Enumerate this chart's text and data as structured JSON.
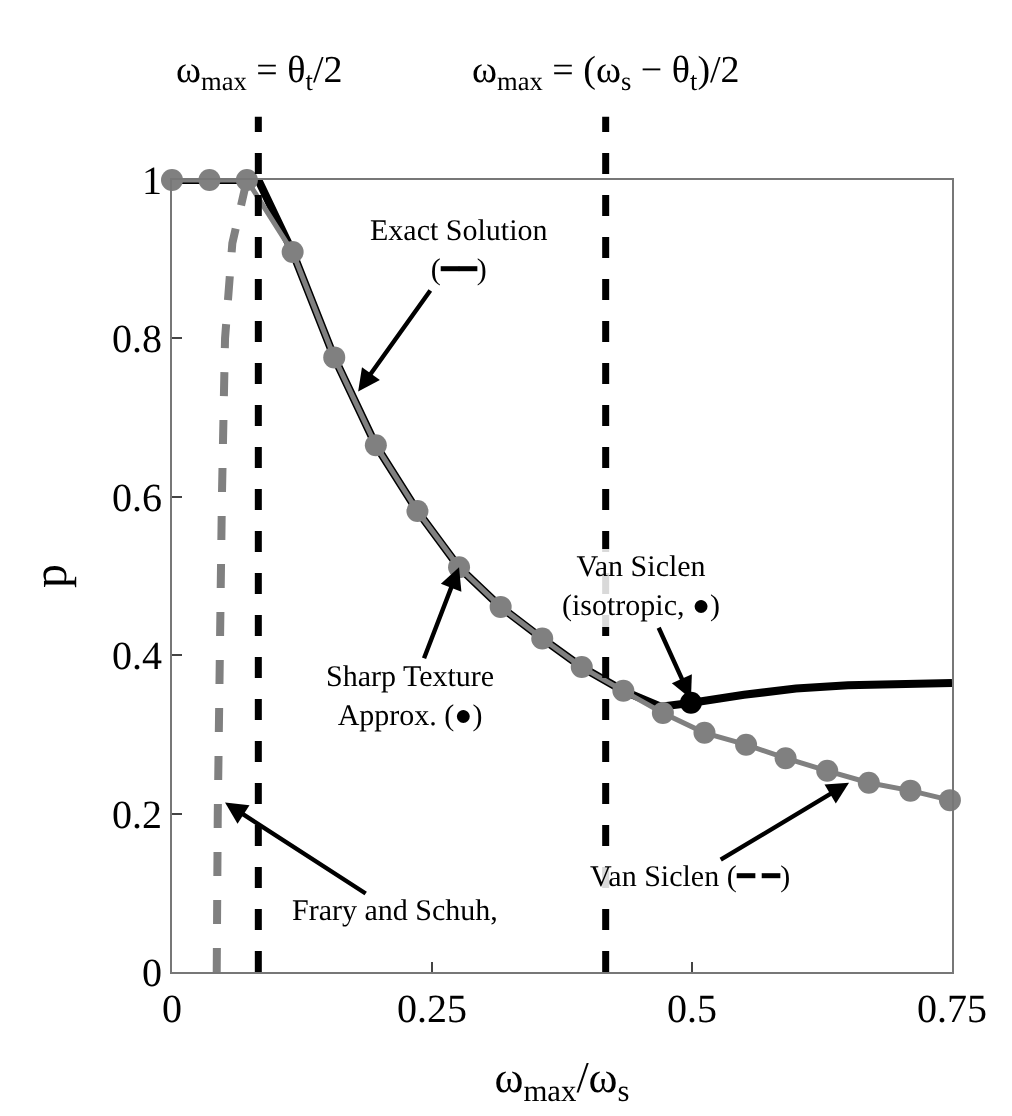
{
  "chart_data": {
    "type": "line",
    "xlabel": "ω$_{max}$/ω$_{s}$",
    "ylabel": "p",
    "xlim": [
      0,
      0.75
    ],
    "xticks": [
      0,
      0.25,
      0.5,
      0.75
    ],
    "ylim": [
      0,
      1
    ],
    "yticks": [
      0,
      0.2,
      0.4,
      0.6,
      0.8,
      1
    ],
    "series": [
      {
        "type": "line",
        "color": "#808080",
        "marker": "circle",
        "line_style": "solid",
        "x": [
          0,
          0.036,
          0.072,
          0.116,
          0.156,
          0.196,
          0.236,
          0.276,
          0.316,
          0.356,
          0.394,
          0.434,
          0.472,
          0.512,
          0.552,
          0.59,
          0.63,
          0.67,
          0.71,
          0.748
        ],
        "values": [
          1,
          1,
          1,
          0.909,
          0.776,
          0.665,
          0.582,
          0.511,
          0.461,
          0.421,
          0.385,
          0.355,
          0.327,
          0.302,
          0.287,
          0.27,
          0.254,
          0.239,
          0.229,
          0.217
        ]
      },
      {
        "color": "#000000",
        "marker": "none",
        "line_style": "solid",
        "x": [
          0,
          0.083,
          0.116,
          0.156,
          0.196,
          0.236,
          0.276,
          0.316,
          0.356,
          0.394,
          0.434,
          0.47,
          0.5,
          0.55,
          0.6,
          0.65,
          0.75
        ],
        "values": [
          1,
          1,
          0.909,
          0.776,
          0.665,
          0.582,
          0.511,
          0.461,
          0.421,
          0.385,
          0.355,
          0.335,
          0.34,
          0.35,
          0.358,
          0.362,
          0.365
        ]
      },
      {
        "type": "line",
        "color": "#808080",
        "marker": "none",
        "line_style": "dashed",
        "x": [
          0.043,
          0.044,
          0.046,
          0.048,
          0.051,
          0.058,
          0.072
        ],
        "values": [
          0,
          0.2,
          0.4,
          0.6,
          0.8,
          0.92,
          1
        ]
      },
      {
        "type": "scatter",
        "color": "#000000",
        "marker": "circle",
        "x": [
          0.499
        ],
        "values": [
          0.34
        ]
      }
    ],
    "ref_lines": [
      {
        "axis": "x",
        "value": 0.083,
        "label": "ω$_{max}$ = θ$_{t}$/2",
        "color": "#000000",
        "line_style": "dashed"
      },
      {
        "axis": "x",
        "value": 0.417,
        "label": "ω$_{max}$ = (ω$_{s}$ − θ$_{t}$)/2",
        "color": "#000000",
        "line_style": "dashed"
      }
    ],
    "annotations": [
      {
        "text": "Exact Solution\n(━━)",
        "x": 0.179,
        "y": 0.733
      },
      {
        "text": "Sharp Texture\nApprox. (●)",
        "x": 0.276,
        "y": 0.511
      },
      {
        "text": "Van Siclen\n(isotropic, ●)",
        "x": 0.499,
        "y": 0.345
      },
      {
        "text": "Frary and Schuh,",
        "x": 0.051,
        "y": 0.214
      },
      {
        "text": "Van Siclen (━ ━)",
        "x": 0.651,
        "y": 0.239
      }
    ]
  }
}
